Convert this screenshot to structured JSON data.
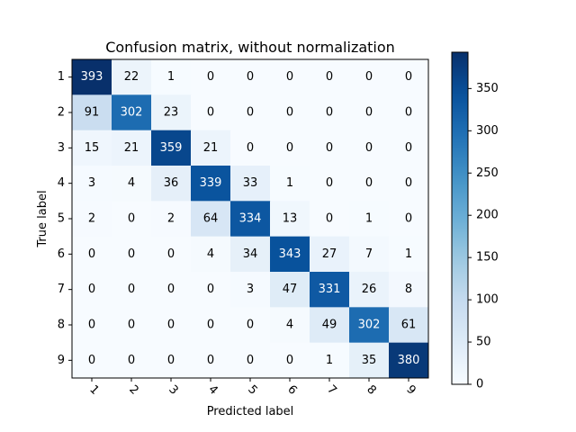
{
  "chart_data": {
    "type": "heatmap",
    "title": "Confusion matrix, without normalization",
    "xlabel": "Predicted label",
    "ylabel": "True label",
    "x_ticks": [
      "1",
      "2",
      "3",
      "4",
      "5",
      "6",
      "7",
      "8",
      "9"
    ],
    "y_ticks": [
      "1",
      "2",
      "3",
      "4",
      "5",
      "6",
      "7",
      "8",
      "9"
    ],
    "matrix": [
      [
        393,
        22,
        1,
        0,
        0,
        0,
        0,
        0,
        0
      ],
      [
        91,
        302,
        23,
        0,
        0,
        0,
        0,
        0,
        0
      ],
      [
        15,
        21,
        359,
        21,
        0,
        0,
        0,
        0,
        0
      ],
      [
        3,
        4,
        36,
        339,
        33,
        1,
        0,
        0,
        0
      ],
      [
        2,
        0,
        2,
        64,
        334,
        13,
        0,
        1,
        0
      ],
      [
        0,
        0,
        0,
        4,
        34,
        343,
        27,
        7,
        1
      ],
      [
        0,
        0,
        0,
        0,
        3,
        47,
        331,
        26,
        8
      ],
      [
        0,
        0,
        0,
        0,
        0,
        4,
        49,
        302,
        61
      ],
      [
        0,
        0,
        0,
        0,
        0,
        0,
        1,
        35,
        380
      ]
    ],
    "colormap": "Blues",
    "vmin": 0,
    "vmax": 393,
    "colorbar_ticks": [
      0,
      50,
      100,
      150,
      200,
      250,
      300,
      350
    ],
    "text_threshold": 196.5,
    "text_color_light": "#ffffff",
    "text_color_dark": "#000000",
    "legend": "colorbar-right",
    "grid": false
  }
}
